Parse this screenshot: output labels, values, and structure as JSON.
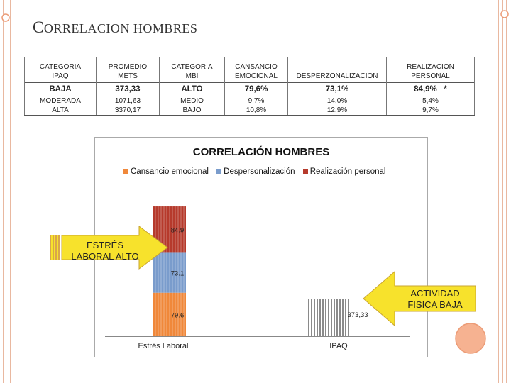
{
  "title": {
    "first": "C",
    "rest": "ORRELACION HOMBRES"
  },
  "table": {
    "headers": [
      [
        "CATEGORIA",
        "IPAQ"
      ],
      [
        "PROMEDIO",
        "METS"
      ],
      [
        "CATEGORIA",
        "MBI"
      ],
      [
        "CANSANCIO",
        "EMOCIONAL"
      ],
      [
        "",
        "DESPERZONALIZACION"
      ],
      [
        "REALIZACION",
        "PERSONAL"
      ]
    ],
    "highlight_row": [
      "BAJA",
      "373,33",
      "ALTO",
      "79,6%",
      "73,1%",
      "84,9%   *"
    ],
    "rows": [
      [
        "MODERADA",
        "1071,63",
        "MEDIO",
        "9,7%",
        "14,0%",
        "5,4%"
      ],
      [
        "ALTA",
        "3370,17",
        "BAJO",
        "10,8%",
        "12,9%",
        "9,7%"
      ]
    ]
  },
  "chart_data": {
    "type": "bar",
    "title": "CORRELACIÓN HOMBRES",
    "categories": [
      "Estrés Laboral",
      "IPAQ"
    ],
    "stacked": true,
    "series": [
      {
        "name": "Cansancio emocional",
        "values": [
          79.6,
          0
        ],
        "color": "#f0883a"
      },
      {
        "name": "Despersonalización",
        "values": [
          73.1,
          0
        ],
        "color": "#7a9ccc"
      },
      {
        "name": "Realización personal",
        "values": [
          84.9,
          0
        ],
        "color": "#b63a2c"
      }
    ],
    "ipaq": {
      "value": 373.33,
      "label": "373,33",
      "color": "#8a8a8a"
    },
    "data_labels": [
      "79.6",
      "73.1",
      "84.9"
    ],
    "legend_position": "top",
    "grid": false
  },
  "callouts": {
    "left": {
      "lines": [
        "ESTRÉS",
        "LABORAL ALTO"
      ],
      "color": "#f7e22c"
    },
    "right": {
      "lines": [
        "ACTIVIDAD",
        "FISICA BAJA"
      ],
      "color": "#f7e22c"
    }
  },
  "colors": {
    "frame_left": "#ec9c77",
    "frame_right": "#ec9c77",
    "circle_fill": "#f6b291",
    "circle_stroke": "#ec9c77"
  }
}
